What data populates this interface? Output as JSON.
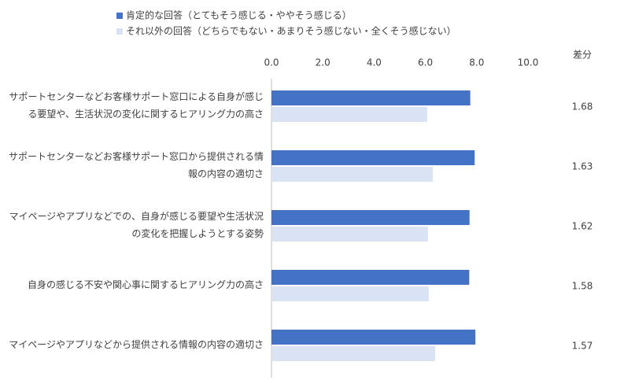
{
  "chart_data": {
    "type": "bar",
    "orientation": "horizontal",
    "categories": [
      "サポートセンターなどお客様サポート窓口による自身が感じる要望や、生活状況の変化に関するヒアリング力の高さ",
      "サポートセンターなどお客様サポート窓口から提供される情報の内容の適切さ",
      "マイページやアプリなどでの、自身が感じる要望や生活状況の変化を把握しようとする姿勢",
      "自身の感じる不安や関心事に関するヒアリング力の高さ",
      "マイページやアプリなどから提供される情報の内容の適切さ"
    ],
    "series": [
      {
        "name": "肯定的な回答（とてもそう感じる・ややそう感じる）",
        "color": "#4472c4",
        "values": [
          7.75,
          7.92,
          7.72,
          7.71,
          7.95
        ]
      },
      {
        "name": "それ以外の回答（どちらでもない・あまりそう感じない・全くそう感じない）",
        "color": "#dae3f3",
        "values": [
          6.07,
          6.29,
          6.1,
          6.13,
          6.38
        ]
      }
    ],
    "difference_title": "差分",
    "differences": [
      1.68,
      1.63,
      1.62,
      1.58,
      1.57
    ],
    "xlim": [
      0,
      10
    ],
    "xticks": [
      {
        "value": 0,
        "label": "0.0"
      },
      {
        "value": 2,
        "label": "2.0"
      },
      {
        "value": 4,
        "label": "4.0"
      },
      {
        "value": 6,
        "label": "6.0"
      },
      {
        "value": 8,
        "label": "8.0"
      },
      {
        "value": 10,
        "label": "10.0"
      }
    ],
    "legend": "top-left"
  }
}
